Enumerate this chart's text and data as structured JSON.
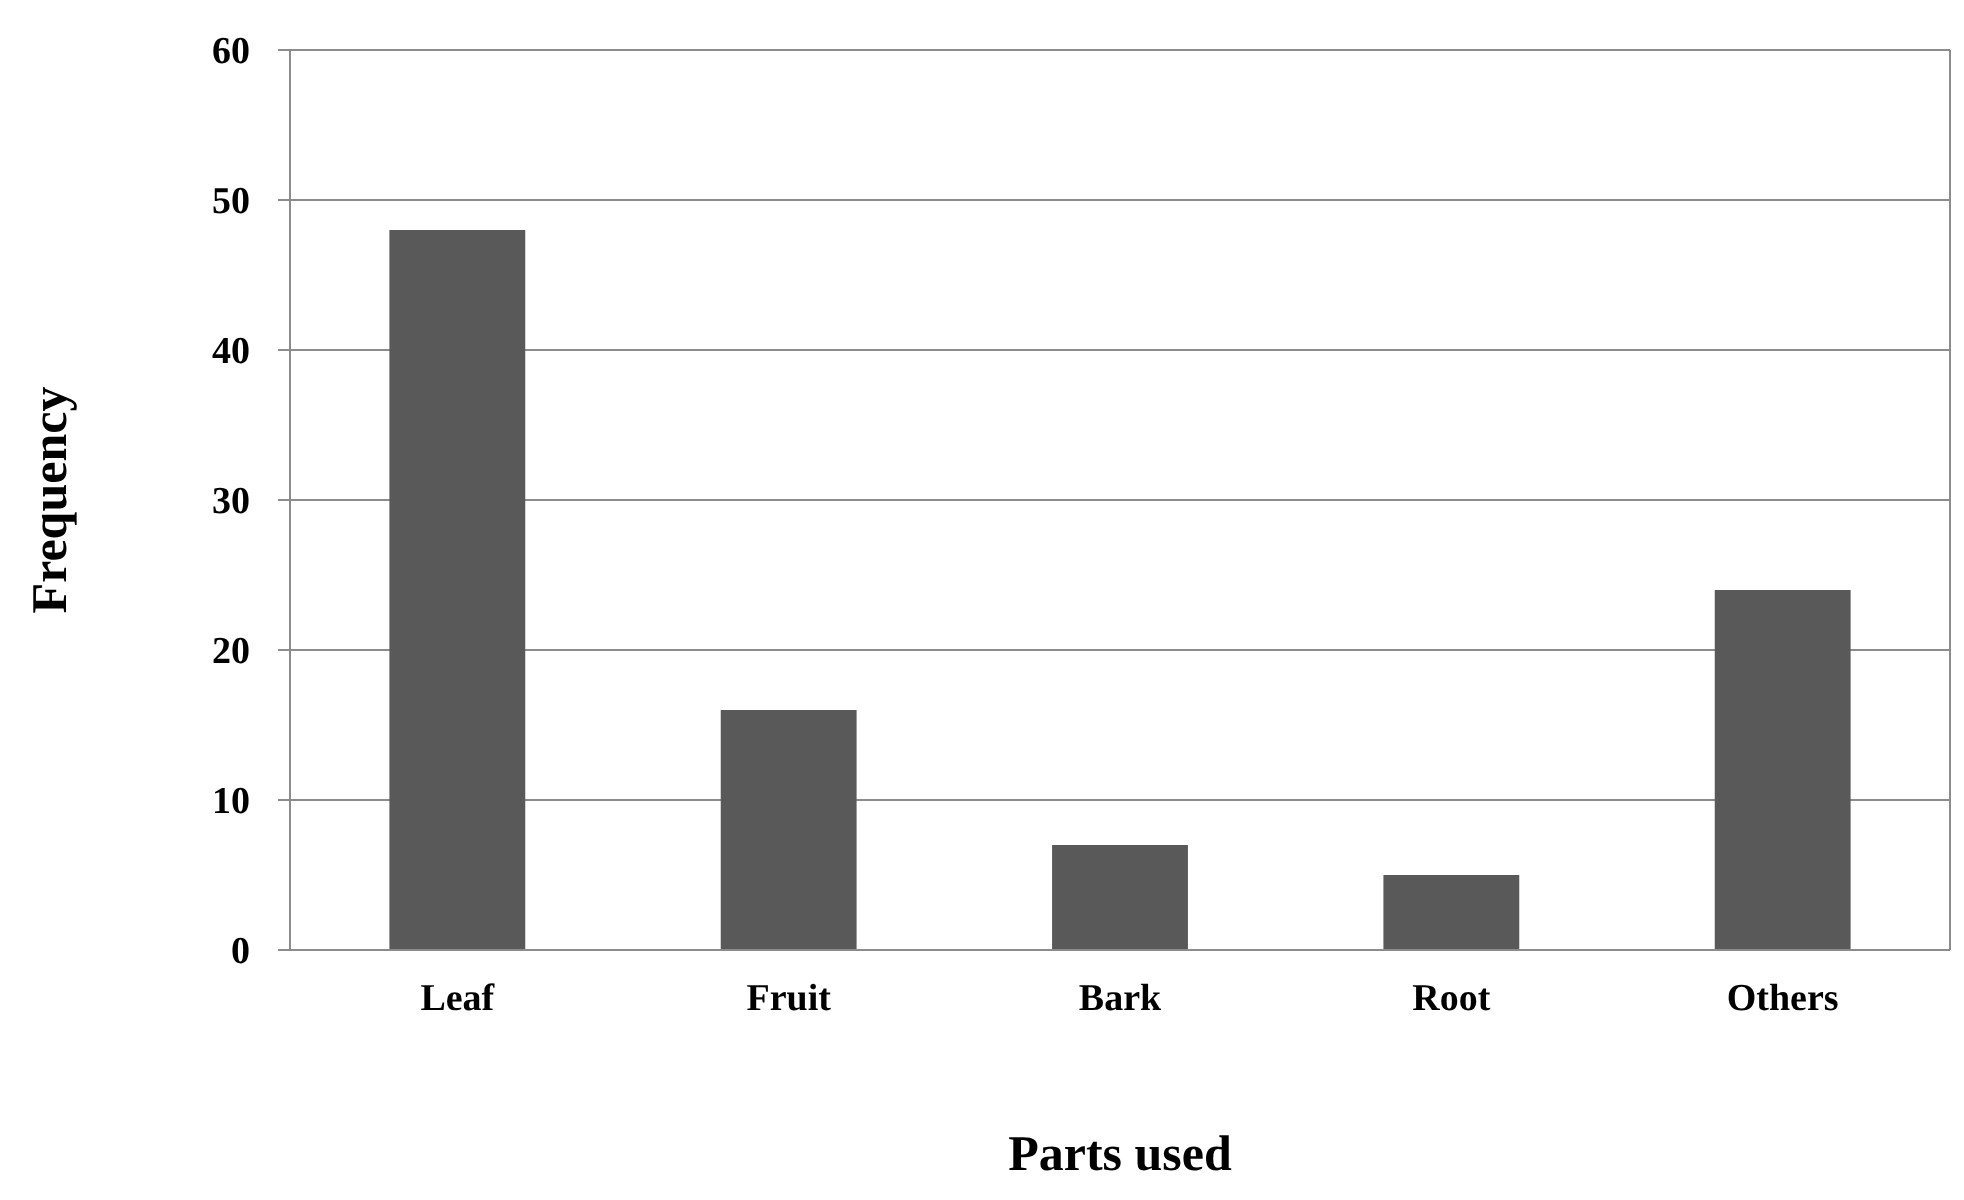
{
  "chart_data": {
    "type": "bar",
    "xlabel": "Parts used",
    "ylabel": "Frequency",
    "categories": [
      "Leaf",
      "Fruit",
      "Bark",
      "Root",
      "Others"
    ],
    "values": [
      48,
      16,
      7,
      5,
      24
    ],
    "color": "#595959",
    "ylim": [
      0,
      60
    ],
    "yticks": [
      0,
      10,
      20,
      30,
      40,
      50,
      60
    ],
    "grid": "y"
  }
}
